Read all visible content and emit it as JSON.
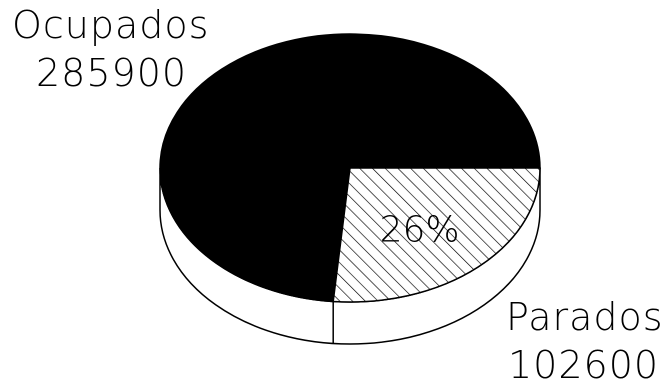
{
  "chart_data": {
    "type": "pie",
    "style": "3d",
    "title": "",
    "slices": [
      {
        "label": "Ocupados",
        "value": 285900,
        "fill": "#000000",
        "pattern": "solid"
      },
      {
        "label": "Parados",
        "value": 102600,
        "fill": "#ffffff",
        "pattern": "diagonal-hatch",
        "percent_label": "26%"
      }
    ],
    "legend": "none"
  },
  "colors": {
    "background": "#ffffff",
    "ink": "#000000"
  }
}
